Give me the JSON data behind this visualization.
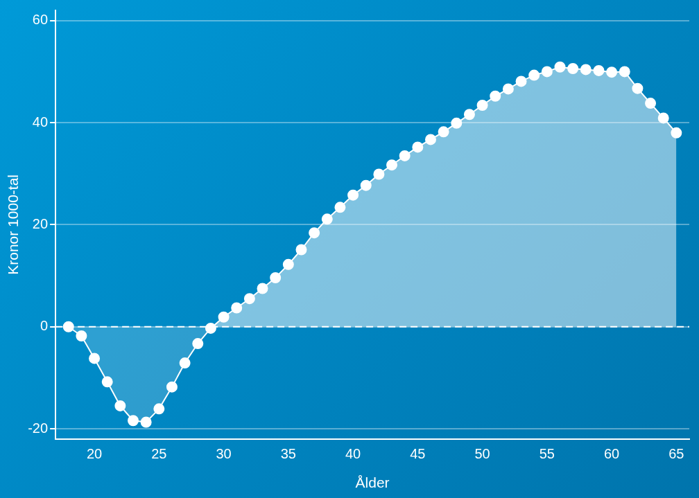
{
  "chart_data": {
    "type": "area",
    "xlabel": "Ålder",
    "ylabel": "Kronor 1000-tal",
    "x": [
      18,
      19,
      20,
      21,
      22,
      23,
      24,
      25,
      26,
      27,
      28,
      29,
      30,
      31,
      32,
      33,
      34,
      35,
      36,
      37,
      38,
      39,
      40,
      41,
      42,
      43,
      44,
      45,
      46,
      47,
      48,
      49,
      50,
      51,
      52,
      53,
      54,
      55,
      56,
      57,
      58,
      59,
      60,
      61,
      62,
      63,
      64,
      65
    ],
    "series": [
      {
        "color": "#ffffff",
        "values": [
          0,
          -1.8,
          -6.2,
          -10.8,
          -15.5,
          -18.4,
          -18.7,
          -16.1,
          -11.8,
          -7.1,
          -3.3,
          -0.3,
          1.9,
          3.7,
          5.5,
          7.5,
          9.6,
          12.2,
          15.1,
          18.4,
          21.1,
          23.4,
          25.8,
          27.7,
          29.9,
          31.7,
          33.5,
          35.2,
          36.7,
          38.2,
          39.9,
          41.6,
          43.4,
          45.2,
          46.6,
          48.1,
          49.3,
          50.0,
          50.9,
          50.6,
          50.4,
          50.2,
          49.9,
          50.0,
          46.7,
          43.8,
          40.9,
          38.0
        ]
      }
    ],
    "xlim": [
      17,
      66
    ],
    "xticks": [
      20,
      25,
      30,
      35,
      40,
      45,
      50,
      55,
      60,
      65
    ],
    "ylim": [
      -22,
      62
    ],
    "yticks": [
      -20,
      0,
      20,
      40,
      60
    ],
    "grid": "y",
    "legend": false,
    "marker": "circle",
    "line_style": "solid",
    "ref_lines": [
      {
        "axis": "y",
        "value": 0,
        "color": "#ffffff",
        "line_style": "dashed"
      }
    ]
  }
}
